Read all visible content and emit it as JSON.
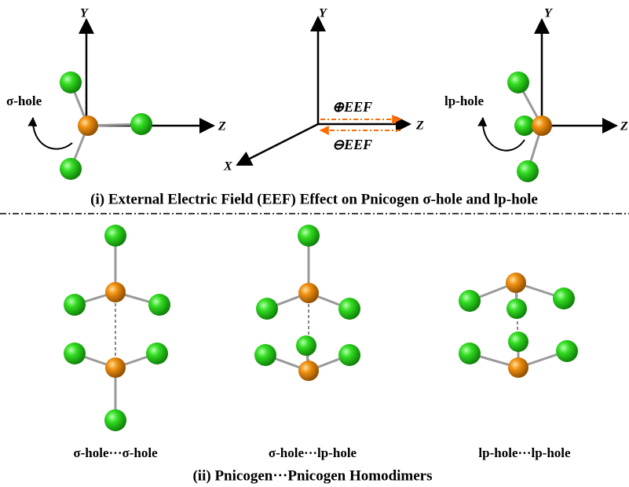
{
  "top": {
    "panels": [
      {
        "axes": {
          "y": "Y",
          "z": "Z"
        },
        "label": "σ-hole"
      },
      {
        "axes": {
          "y": "Y",
          "z": "Z",
          "x": "X"
        },
        "field_labels": [
          "⊕EEF",
          "⊖EEF"
        ]
      },
      {
        "axes": {
          "y": "Y",
          "z": "Z"
        },
        "label": "lp-hole"
      }
    ],
    "caption": "(i) External Electric Field (EEF) Effect on Pnicogen σ-hole and lp-hole"
  },
  "bottom": {
    "dimers": [
      "σ-hole···σ-hole",
      "σ-hole···lp-hole",
      "lp-hole···lp-hole"
    ],
    "caption": "(ii) Pnicogen···Pnicogen Homodimers"
  }
}
